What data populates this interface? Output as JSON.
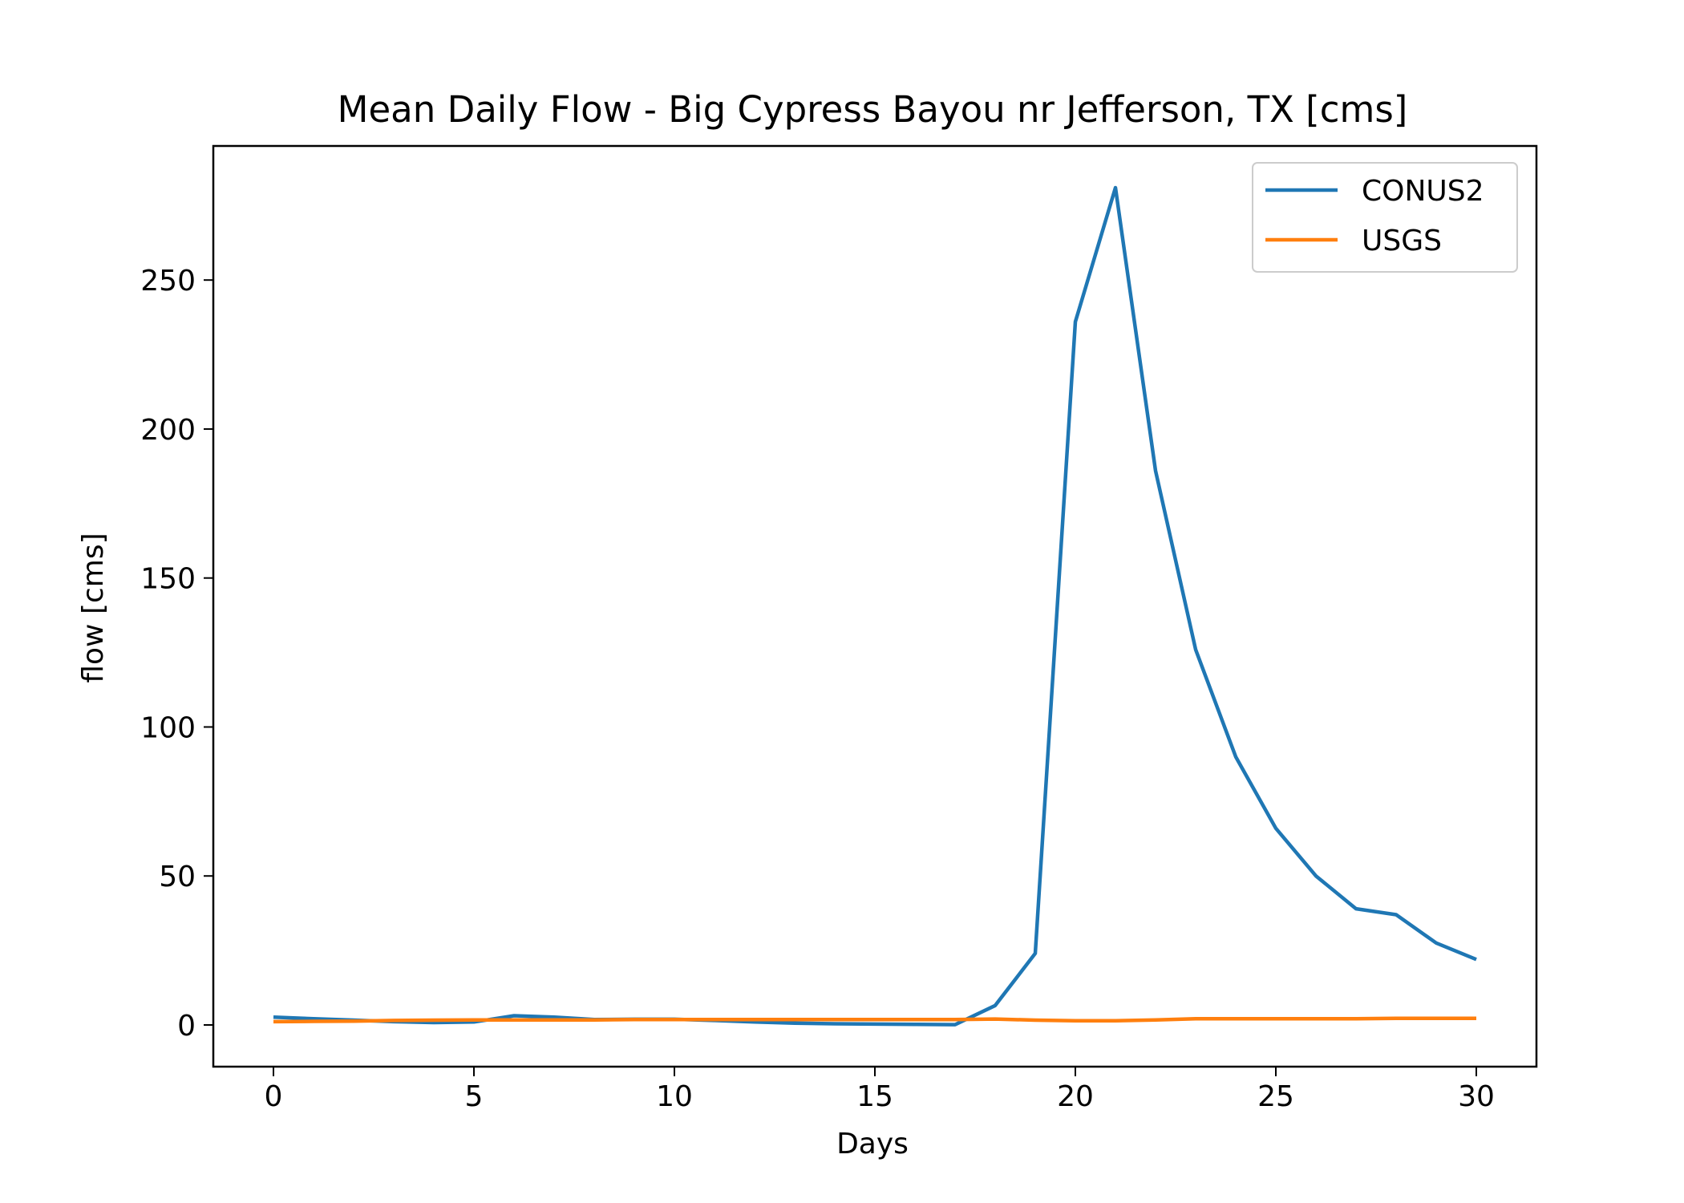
{
  "chart_data": {
    "type": "line",
    "title": "Mean Daily Flow - Big Cypress Bayou nr Jefferson, TX [cms]",
    "xlabel": "Days",
    "ylabel": "flow [cms]",
    "xlim": [
      -1.5,
      31.5
    ],
    "ylim": [
      -14,
      295
    ],
    "xticks": [
      0,
      5,
      10,
      15,
      20,
      25,
      30
    ],
    "yticks": [
      0,
      50,
      100,
      150,
      200,
      250
    ],
    "grid": false,
    "legend_position": "top-right",
    "x": [
      0,
      1,
      2,
      3,
      4,
      5,
      6,
      7,
      8,
      9,
      10,
      11,
      12,
      13,
      14,
      15,
      16,
      17,
      18,
      19,
      20,
      21,
      22,
      23,
      24,
      25,
      26,
      27,
      28,
      29,
      30
    ],
    "series": [
      {
        "name": "CONUS2",
        "color": "#1f77b4",
        "values": [
          2.6,
          2.1,
          1.6,
          1.1,
          0.8,
          1.0,
          3.1,
          2.6,
          1.8,
          1.9,
          1.9,
          1.5,
          1.0,
          0.6,
          0.4,
          0.3,
          0.2,
          0.1,
          6.5,
          24,
          236,
          281,
          186,
          126,
          90,
          66,
          50,
          39,
          37,
          27.5,
          22
        ]
      },
      {
        "name": "USGS",
        "color": "#ff7f0e",
        "values": [
          1.1,
          1.2,
          1.3,
          1.5,
          1.6,
          1.7,
          1.7,
          1.7,
          1.7,
          1.8,
          1.8,
          1.8,
          1.8,
          1.8,
          1.8,
          1.8,
          1.8,
          1.8,
          2.0,
          1.6,
          1.4,
          1.4,
          1.7,
          2.1,
          2.1,
          2.1,
          2.1,
          2.1,
          2.2,
          2.2,
          2.2
        ]
      }
    ]
  }
}
